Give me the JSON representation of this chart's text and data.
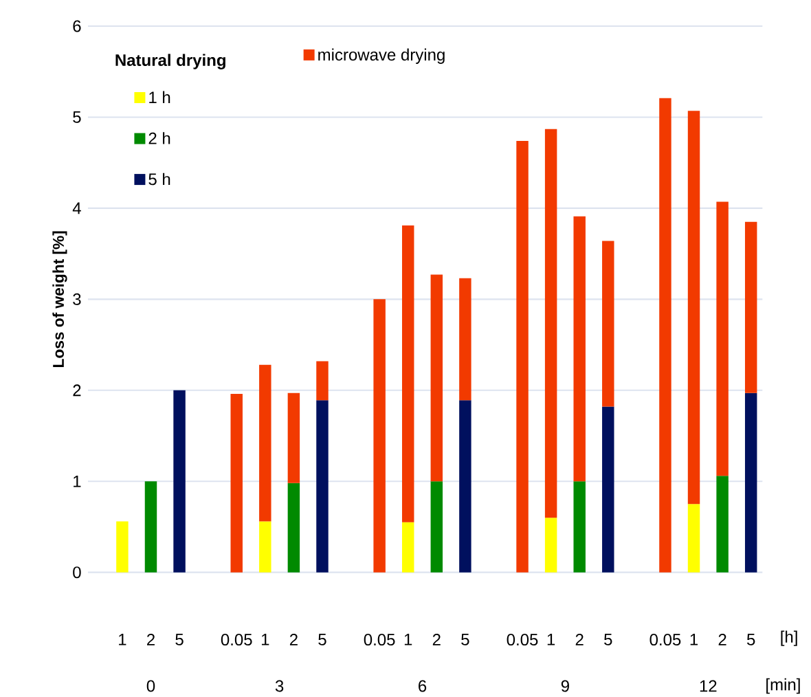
{
  "chart_data": {
    "type": "bar",
    "stacked": true,
    "ylabel": "Loss of weight [%]",
    "legend_title": "Natural drying",
    "legend": "top left",
    "grid": "y",
    "categories": [
      "1",
      "2",
      "5",
      null,
      "0.05",
      "1",
      "2",
      "5",
      null,
      "0.05",
      "1",
      "2",
      "5",
      null,
      "0.05",
      "1",
      "2",
      "5",
      null,
      "0.05",
      "1",
      "2",
      "5"
    ],
    "ylim": [
      0,
      6
    ],
    "yticks": [
      0,
      1,
      2,
      3,
      4,
      5,
      6
    ],
    "series": [
      {
        "name": "1 h",
        "color": "#ffff00",
        "values": [
          0.56,
          null,
          null,
          null,
          null,
          0.56,
          null,
          null,
          null,
          null,
          0.55,
          null,
          null,
          null,
          null,
          0.6,
          null,
          null,
          null,
          null,
          0.75,
          null,
          null
        ]
      },
      {
        "name": "2 h",
        "color": "#008a00",
        "values": [
          null,
          1.0,
          null,
          null,
          null,
          null,
          0.98,
          null,
          null,
          null,
          null,
          1.0,
          null,
          null,
          null,
          null,
          1.0,
          null,
          null,
          null,
          null,
          1.06,
          null
        ]
      },
      {
        "name": "5 h",
        "color": "#00105e",
        "values": [
          null,
          null,
          2.0,
          null,
          null,
          null,
          null,
          1.89,
          null,
          null,
          null,
          null,
          1.89,
          null,
          null,
          null,
          null,
          1.82,
          null,
          null,
          null,
          null,
          1.97
        ]
      },
      {
        "name": "microwave drying",
        "color": "#f23a00",
        "values": [
          null,
          null,
          null,
          null,
          1.96,
          1.72,
          0.99,
          0.43,
          null,
          3.0,
          3.26,
          2.27,
          1.34,
          null,
          4.74,
          4.27,
          2.91,
          1.82,
          null,
          5.21,
          4.32,
          3.01,
          1.88
        ]
      }
    ],
    "annotations": [
      "[h]",
      "0",
      "3",
      "6",
      "9",
      "12",
      "[min]"
    ]
  }
}
